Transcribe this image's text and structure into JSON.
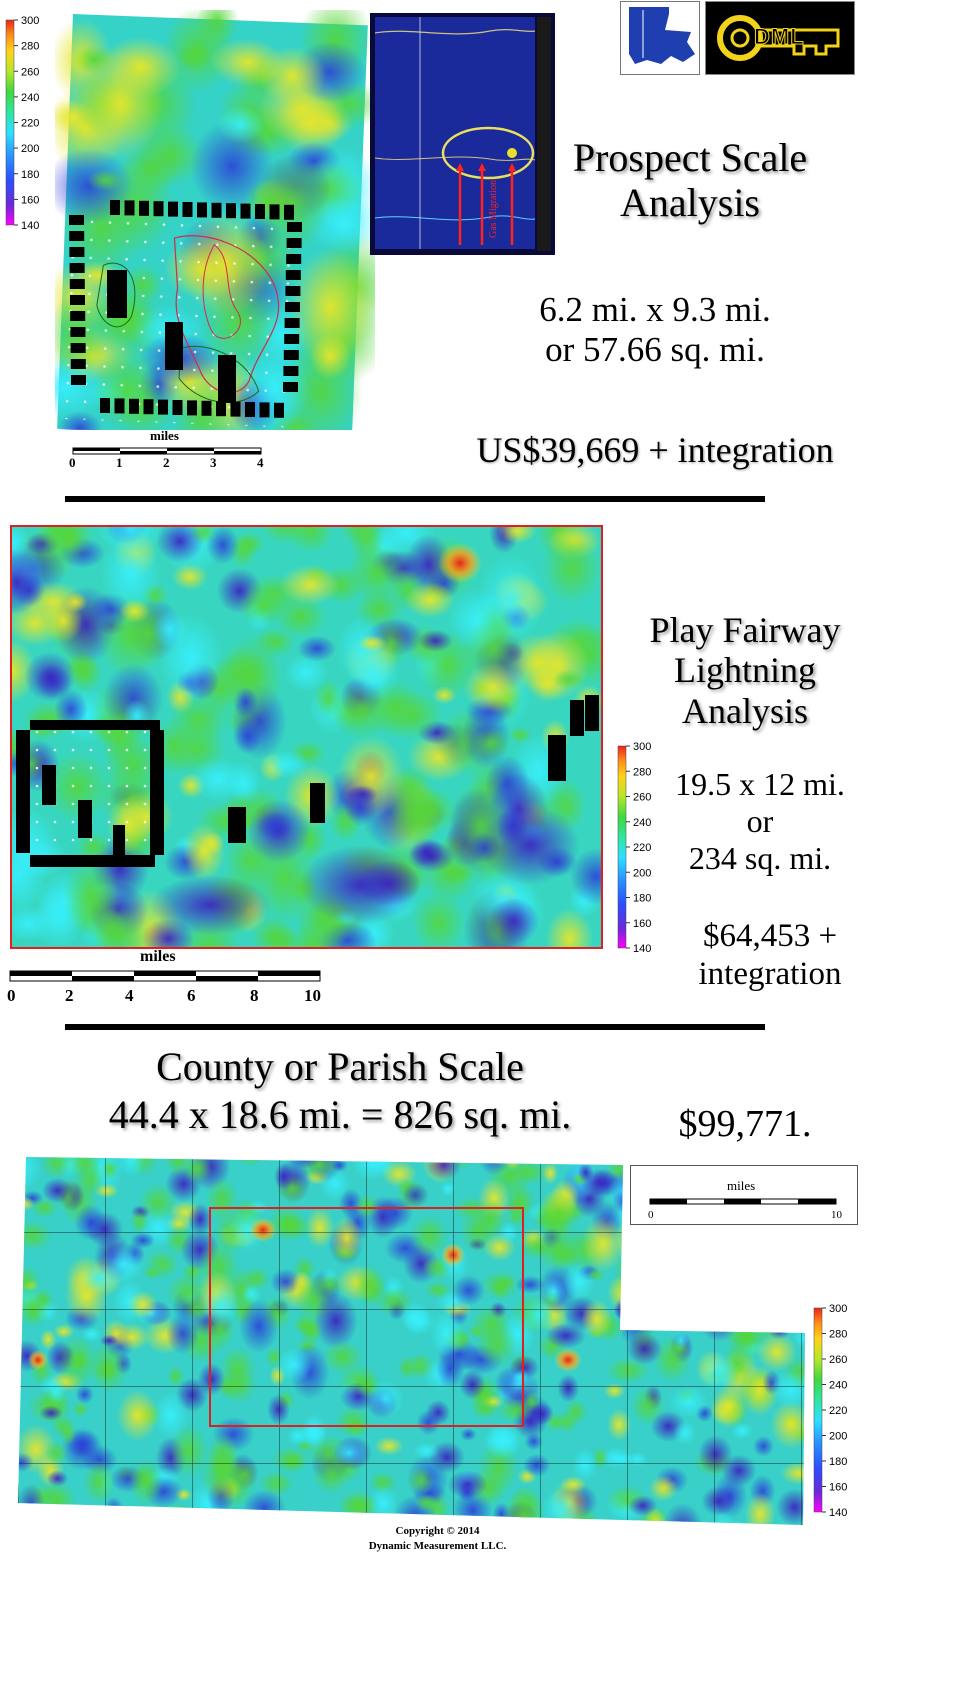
{
  "header": {
    "logo_louisiana": "Louisiana logo",
    "logo_dml_text": "DML"
  },
  "prospect": {
    "title_line1": "Prospect Scale",
    "title_line2": "Analysis",
    "dims_line1": "6.2 mi. x 9.3 mi.",
    "dims_line2": "or 57.66 sq. mi.",
    "price": "US$39,669 + integration",
    "scale_label": "miles",
    "scale_ticks": [
      "0",
      "1",
      "2",
      "3",
      "4"
    ],
    "colorbar_ticks": [
      "300",
      "280",
      "260",
      "240",
      "220",
      "200",
      "180",
      "160",
      "140"
    ],
    "seismic_annotation": "Gas Migration"
  },
  "play": {
    "title_line1": "Play Fairway",
    "title_line2": "Lightning",
    "title_line3": "Analysis",
    "dims_line1": "19.5 x 12 mi.",
    "dims_line2": "or",
    "dims_line3": "234 sq. mi.",
    "price_line1": "$64,453 +",
    "price_line2": "integration",
    "scale_label": "miles",
    "scale_ticks": [
      "0",
      "2",
      "4",
      "6",
      "8",
      "10"
    ],
    "colorbar_ticks": [
      "300",
      "280",
      "260",
      "240",
      "220",
      "200",
      "180",
      "160",
      "140"
    ]
  },
  "county": {
    "title_line1": "County or Parish Scale",
    "title_line2": "44.4 x 18.6 mi. = 826 sq. mi.",
    "price": "$99,771.",
    "scale_label": "miles",
    "scale_ticks": [
      "0",
      "10"
    ],
    "colorbar_ticks": [
      "300",
      "280",
      "260",
      "240",
      "220",
      "200",
      "180",
      "160",
      "140"
    ]
  },
  "footer": {
    "copyright_line1": "Copyright  © 2014",
    "copyright_line2": "Dynamic  Measurement  LLC."
  },
  "colors": {
    "colorbar_gradient": [
      "#ff00ff",
      "#4a2bd8",
      "#2b6cff",
      "#2fd2ff",
      "#2fe6a0",
      "#3fd83f",
      "#b8e62a",
      "#ffd21a",
      "#ff8a1a",
      "#e8251a"
    ],
    "frame_red": "#e02020",
    "dml_gold": "#f2d21a"
  }
}
